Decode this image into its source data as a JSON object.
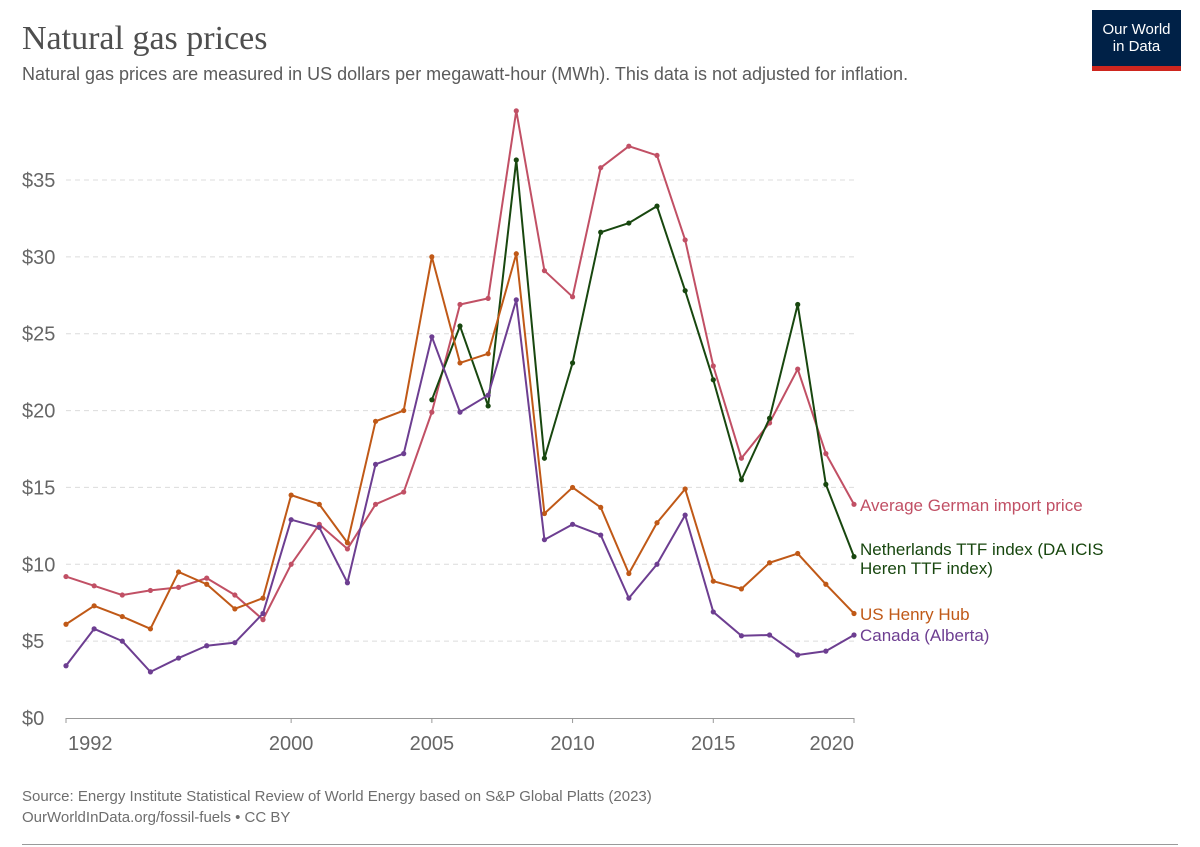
{
  "header": {
    "title": "Natural gas prices",
    "subtitle": "Natural gas prices are measured in US dollars per megawatt-hour (MWh). This data is not adjusted for inflation."
  },
  "logo": {
    "line1": "Our World",
    "line2": "in Data",
    "bg": "#002147",
    "accent": "#ce261e"
  },
  "footer": {
    "source": "Source: Energy Institute Statistical Review of World Energy based on S&P Global Platts (2023)",
    "link": "OurWorldInData.org/fossil-fuels • CC BY"
  },
  "chart_data": {
    "type": "line",
    "title": "Natural gas prices",
    "xlabel": "",
    "ylabel": "",
    "xlim": [
      1992,
      2020
    ],
    "ylim": [
      0,
      35
    ],
    "grid": "horizontal dashed",
    "legend": "right, inline labels at line ends",
    "x_ticks": [
      {
        "v": 1992,
        "label": "1992"
      },
      {
        "v": 2000,
        "label": "2000"
      },
      {
        "v": 2005,
        "label": "2005"
      },
      {
        "v": 2010,
        "label": "2010"
      },
      {
        "v": 2015,
        "label": "2015"
      },
      {
        "v": 2020,
        "label": "2020"
      }
    ],
    "y_ticks": [
      {
        "v": 0,
        "label": "$0"
      },
      {
        "v": 5,
        "label": "$5"
      },
      {
        "v": 10,
        "label": "$10"
      },
      {
        "v": 15,
        "label": "$15"
      },
      {
        "v": 20,
        "label": "$20"
      },
      {
        "v": 25,
        "label": "$25"
      },
      {
        "v": 30,
        "label": "$30"
      },
      {
        "v": 35,
        "label": "$35"
      }
    ],
    "series": [
      {
        "name": "Average German import price",
        "label_lines": [
          "Average German import price"
        ],
        "color": "#c15065",
        "start": 1992,
        "values": [
          9.2,
          8.6,
          8.0,
          8.3,
          8.5,
          9.1,
          8.0,
          6.4,
          10.0,
          12.6,
          11.0,
          13.9,
          14.7,
          19.9,
          26.9,
          27.3,
          39.5,
          29.1,
          27.4,
          35.8,
          37.2,
          36.6,
          31.1,
          22.9,
          16.9,
          19.2,
          22.7,
          17.2,
          13.9
        ]
      },
      {
        "name": "Netherlands TTF index (DA ICIS Heren TTF index)",
        "label_lines": [
          "Netherlands TTF index (DA ICIS",
          "Heren TTF index)"
        ],
        "color": "#18470f",
        "start": 2005,
        "values": [
          20.7,
          25.5,
          20.3,
          36.3,
          16.9,
          23.1,
          31.6,
          32.2,
          33.3,
          27.8,
          22.0,
          15.5,
          19.5,
          26.9,
          15.2,
          10.5
        ]
      },
      {
        "name": "US Henry Hub",
        "label_lines": [
          "US Henry Hub"
        ],
        "color": "#c05917",
        "start": 1992,
        "values": [
          6.1,
          7.3,
          6.6,
          5.8,
          9.5,
          8.7,
          7.1,
          7.8,
          14.5,
          13.9,
          11.4,
          19.3,
          20.0,
          30.0,
          23.1,
          23.7,
          30.2,
          13.3,
          15.0,
          13.7,
          9.4,
          12.7,
          14.9,
          8.9,
          8.4,
          10.1,
          10.7,
          8.7,
          6.8
        ]
      },
      {
        "name": "Canada (Alberta)",
        "label_lines": [
          "Canada (Alberta)"
        ],
        "color": "#6d3e91",
        "start": 1992,
        "values": [
          3.4,
          5.8,
          5.0,
          3.0,
          3.9,
          4.7,
          4.9,
          6.8,
          12.9,
          12.4,
          8.8,
          16.5,
          17.2,
          24.8,
          19.9,
          21.0,
          27.2,
          11.6,
          12.6,
          11.9,
          7.8,
          10.0,
          13.2,
          6.9,
          5.35,
          5.4,
          4.1,
          4.35,
          5.4
        ]
      }
    ]
  }
}
